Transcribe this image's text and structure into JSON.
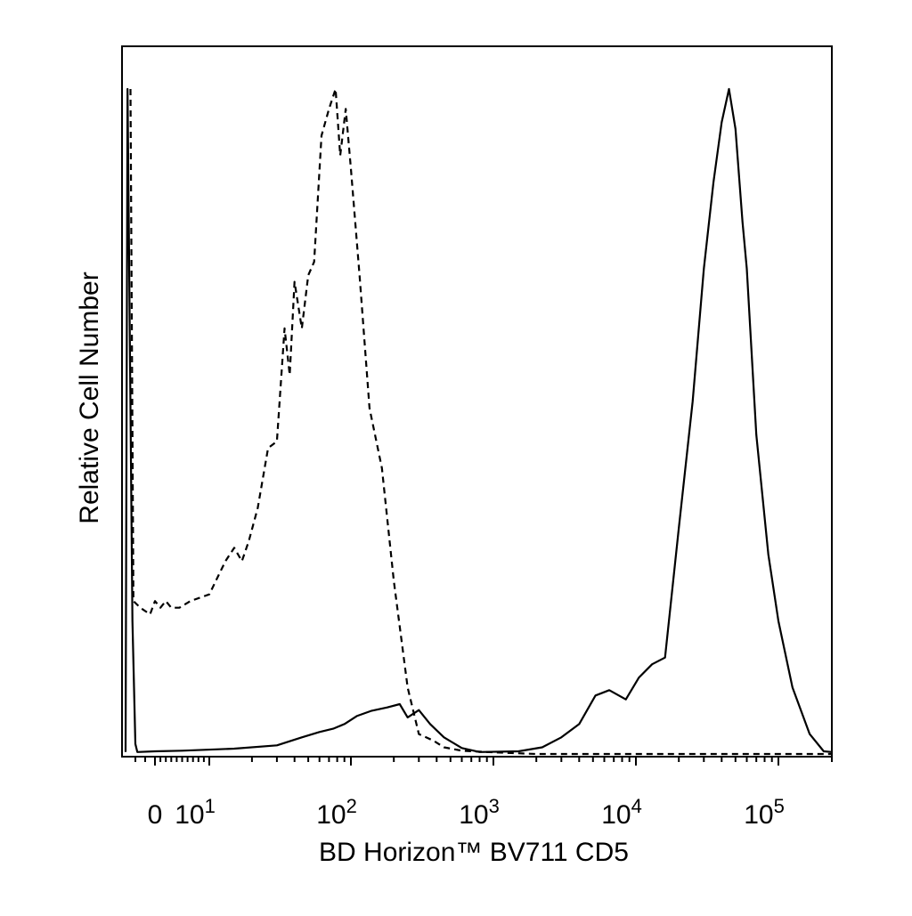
{
  "chart_data": {
    "type": "line",
    "title": "",
    "xlabel": "BD Horizon™ BV711 CD5",
    "ylabel": "Relative Cell Number",
    "x_scale": "biexponential (log)",
    "xlim": [
      -3,
      200000
    ],
    "ylim": [
      0,
      100
    ],
    "grid": false,
    "legend": "none",
    "x_tick_labels": [
      {
        "value": 0,
        "base": "0",
        "exp": ""
      },
      {
        "value": 10,
        "base": "10",
        "exp": "1"
      },
      {
        "value": 100,
        "base": "10",
        "exp": "2"
      },
      {
        "value": 1000,
        "base": "10",
        "exp": "3"
      },
      {
        "value": 10000,
        "base": "10",
        "exp": "4"
      },
      {
        "value": 100000,
        "base": "10",
        "exp": "5"
      }
    ],
    "series": [
      {
        "style": "dashed",
        "color": "#000000",
        "points": [
          [
            -2.5,
            100
          ],
          [
            -2.2,
            23
          ],
          [
            -1.5,
            22
          ],
          [
            -0.5,
            21
          ],
          [
            0,
            23
          ],
          [
            1,
            22
          ],
          [
            2,
            23
          ],
          [
            3,
            22
          ],
          [
            4.5,
            22
          ],
          [
            6.5,
            23
          ],
          [
            10,
            24
          ],
          [
            13,
            29
          ],
          [
            15,
            31
          ],
          [
            17,
            29
          ],
          [
            19,
            32
          ],
          [
            22,
            37
          ],
          [
            26,
            46
          ],
          [
            30,
            47
          ],
          [
            34,
            64
          ],
          [
            37,
            57
          ],
          [
            40,
            71
          ],
          [
            45,
            64
          ],
          [
            50,
            72
          ],
          [
            55,
            74
          ],
          [
            62,
            93
          ],
          [
            70,
            97
          ],
          [
            78,
            100
          ],
          [
            84,
            90
          ],
          [
            92,
            97
          ],
          [
            100,
            88
          ],
          [
            115,
            72
          ],
          [
            135,
            52
          ],
          [
            165,
            43
          ],
          [
            200,
            26
          ],
          [
            250,
            10
          ],
          [
            300,
            3
          ],
          [
            380,
            2
          ],
          [
            450,
            1
          ],
          [
            600,
            0.5
          ],
          [
            900,
            0.3
          ],
          [
            2000,
            0
          ],
          [
            200000,
            0
          ]
        ]
      },
      {
        "style": "solid",
        "color": "#000000",
        "points": [
          [
            -3,
            0.3
          ],
          [
            -2.8,
            100
          ],
          [
            -2.3,
            20
          ],
          [
            -2,
            1.5
          ],
          [
            -1.8,
            0.3
          ],
          [
            0,
            0.4
          ],
          [
            5,
            0.5
          ],
          [
            15,
            0.8
          ],
          [
            30,
            1.3
          ],
          [
            45,
            2.5
          ],
          [
            60,
            3.3
          ],
          [
            75,
            3.8
          ],
          [
            90,
            4.5
          ],
          [
            110,
            5.7
          ],
          [
            140,
            6.5
          ],
          [
            180,
            7.0
          ],
          [
            220,
            7.5
          ],
          [
            250,
            5.5
          ],
          [
            300,
            6.6
          ],
          [
            360,
            4.5
          ],
          [
            450,
            2.5
          ],
          [
            600,
            0.9
          ],
          [
            800,
            0.3
          ],
          [
            1500,
            0.4
          ],
          [
            2200,
            1.0
          ],
          [
            3000,
            2.5
          ],
          [
            4000,
            4.5
          ],
          [
            5200,
            8.8
          ],
          [
            6500,
            9.6
          ],
          [
            8500,
            8.2
          ],
          [
            10500,
            11.5
          ],
          [
            13000,
            13.5
          ],
          [
            16000,
            14.5
          ],
          [
            20000,
            34
          ],
          [
            25000,
            53
          ],
          [
            30000,
            73
          ],
          [
            35000,
            86
          ],
          [
            40000,
            95
          ],
          [
            45000,
            100
          ],
          [
            50000,
            94
          ],
          [
            56000,
            80
          ],
          [
            60000,
            73
          ],
          [
            70000,
            48
          ],
          [
            85000,
            30
          ],
          [
            100000,
            20
          ],
          [
            120000,
            10
          ],
          [
            150000,
            3
          ],
          [
            180000,
            0.4
          ],
          [
            200000,
            0.3
          ]
        ]
      }
    ]
  }
}
